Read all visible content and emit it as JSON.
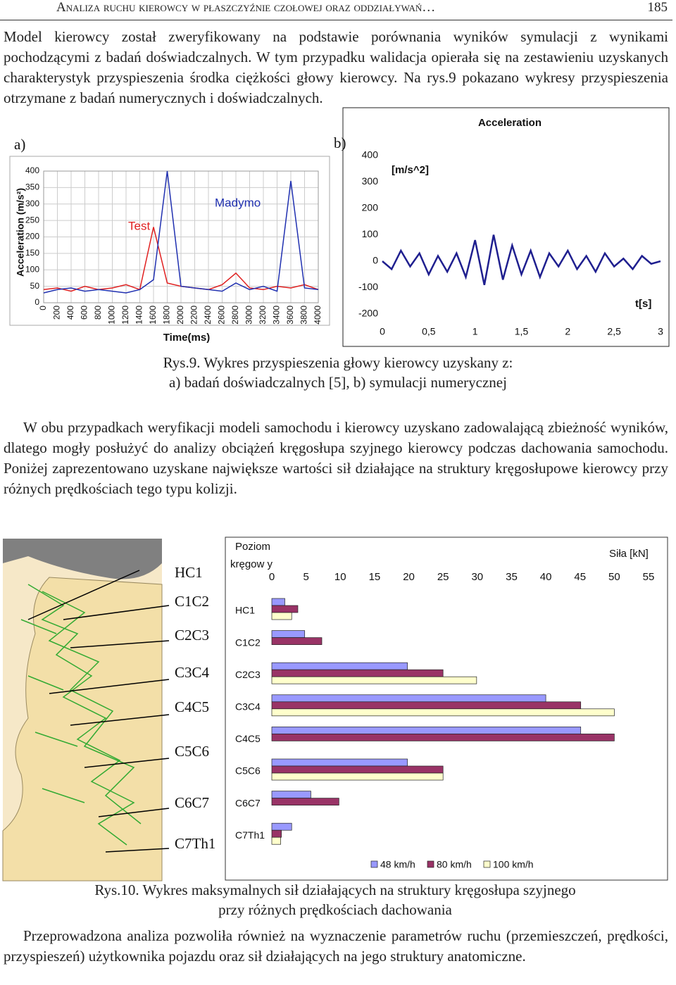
{
  "header": {
    "title": "Analiza ruchu kierowcy w płaszczyźnie czołowej oraz oddziaływań…",
    "page": "185"
  },
  "paragraphs": [
    "Model kierowcy został zweryfikowany na podstawie porównania wyników symulacji z wynikami pochodzącymi z badań doświadczalnych. W tym przypadku walidacja opierała się na zestawieniu uzyskanych charakterystyk przyspieszenia środka ciężkości głowy kierowcy. Na rys.9 pokazano wykresy przyspieszenia otrzymane z badań numerycznych i doświadczalnych.",
    "W obu przypadkach weryfikacji modeli samochodu i kierowcy uzyskano zadowalającą zbieżność wyników, dlatego mogły posłużyć do analizy obciążeń kręgosłupa szyjnego kierowcy podczas dachowania samochodu. Poniżej zaprezentowano uzyskane największe wartości sił działające na struktury kręgosłupowe kierowcy przy różnych prędkościach tego typu kolizji.",
    "Przeprowadzona analiza pozwoliła również na wyznaczenie parametrów ruchu (przemieszczeń, prędkości, przyspieszeń) użytkownika pojazdu oraz sił działających na jego struktury anatomiczne."
  ],
  "figure9": {
    "label_a": "a)",
    "label_b": "b)",
    "caption": [
      "Rys.9. Wykres przyspieszenia głowy kierowcy uzyskany z:",
      "a) badań doświadczalnych [5], b) symulacji numerycznej"
    ]
  },
  "figure10": {
    "labels": [
      "HC1",
      "C1C2",
      "C2C3",
      "C3C4",
      "C4C5",
      "C5C6",
      "C6C7",
      "C7Th1"
    ],
    "caption": [
      "Rys.10. Wykres maksymalnych sił działających na struktury kręgosłupa szyjnego",
      "przy różnych prędkościach dachowania"
    ]
  },
  "chart_data": [
    {
      "type": "line",
      "y_label": "Acceleration (m/s²)",
      "x_label": "Time(ms)",
      "x": [
        0,
        200,
        400,
        600,
        800,
        1000,
        1200,
        1400,
        1600,
        1800,
        2000,
        2200,
        2400,
        2600,
        2800,
        3000,
        3200,
        3400,
        3600,
        3800,
        4000
      ],
      "series": [
        {
          "name": "Test",
          "color": "#e02020",
          "values": [
            40,
            45,
            35,
            50,
            40,
            45,
            55,
            40,
            230,
            60,
            50,
            45,
            40,
            55,
            90,
            45,
            40,
            50,
            45,
            55,
            40
          ]
        },
        {
          "name": "Madymo",
          "color": "#2030b0",
          "values": [
            30,
            40,
            45,
            35,
            40,
            35,
            30,
            40,
            70,
            400,
            50,
            45,
            40,
            35,
            60,
            40,
            50,
            35,
            370,
            45,
            40
          ]
        }
      ],
      "xlim": [
        0,
        4000
      ],
      "ylim": [
        0,
        400
      ],
      "xticks": [
        0,
        200,
        400,
        600,
        800,
        1000,
        1200,
        1400,
        1600,
        1800,
        2000,
        2200,
        2400,
        2600,
        2800,
        3000,
        3200,
        3400,
        3600,
        3800,
        4000
      ],
      "yticks": [
        0,
        50,
        100,
        150,
        200,
        250,
        300,
        350,
        400
      ],
      "grid": true
    },
    {
      "type": "line",
      "title": "Acceleration",
      "y_label": "[m/s^2]",
      "x_label": "t[s]",
      "x": [
        0,
        0.1,
        0.2,
        0.3,
        0.4,
        0.5,
        0.6,
        0.7,
        0.8,
        0.9,
        1,
        1.1,
        1.2,
        1.3,
        1.4,
        1.5,
        1.6,
        1.7,
        1.8,
        1.9,
        2,
        2.1,
        2.2,
        2.3,
        2.4,
        2.5,
        2.6,
        2.7,
        2.8,
        2.9,
        3
      ],
      "values": [
        0,
        -30,
        40,
        -20,
        30,
        -50,
        20,
        -40,
        30,
        -60,
        80,
        -90,
        100,
        -70,
        60,
        -50,
        40,
        -60,
        30,
        -20,
        40,
        -30,
        20,
        -40,
        30,
        -20,
        10,
        -30,
        20,
        -10,
        0
      ],
      "color": "#1f1f8f",
      "xlim": [
        0,
        3
      ],
      "ylim": [
        -200,
        400
      ],
      "xticks": [
        0,
        {
          "value": 0.5,
          "label": "0,5"
        },
        1,
        {
          "value": 1.5,
          "label": "1,5"
        },
        2,
        {
          "value": 2.5,
          "label": "2,5"
        },
        3
      ],
      "yticks": [
        -200,
        -100,
        0,
        100,
        200,
        300,
        400
      ],
      "grid": false
    },
    {
      "type": "bar",
      "orientation": "horizontal",
      "y_label": [
        "Poziom",
        "kręgow y"
      ],
      "x_label": "Siła [kN]",
      "categories": [
        "HC1",
        "C1C2",
        "C2C3",
        "C3C4",
        "C4C5",
        "C5C6",
        "C6C7",
        "C7Th1"
      ],
      "series": [
        {
          "name": "48 km/h",
          "color": "#9999ff",
          "values": [
            1.9,
            4.8,
            19.8,
            40,
            45.1,
            19.8,
            5.7,
            2.9
          ]
        },
        {
          "name": "80 km/h",
          "color": "#993366",
          "values": [
            3.8,
            7.3,
            25,
            45.1,
            50,
            25,
            9.8,
            1.4
          ]
        },
        {
          "name": "100 km/h",
          "color": "#ffffcc",
          "values": [
            2.9,
            0,
            29.9,
            50,
            0,
            25,
            0,
            1.3
          ]
        }
      ],
      "xlim": [
        0,
        55
      ],
      "xticks": [
        0,
        5,
        10,
        15,
        20,
        25,
        30,
        35,
        40,
        45,
        50,
        55
      ]
    }
  ]
}
